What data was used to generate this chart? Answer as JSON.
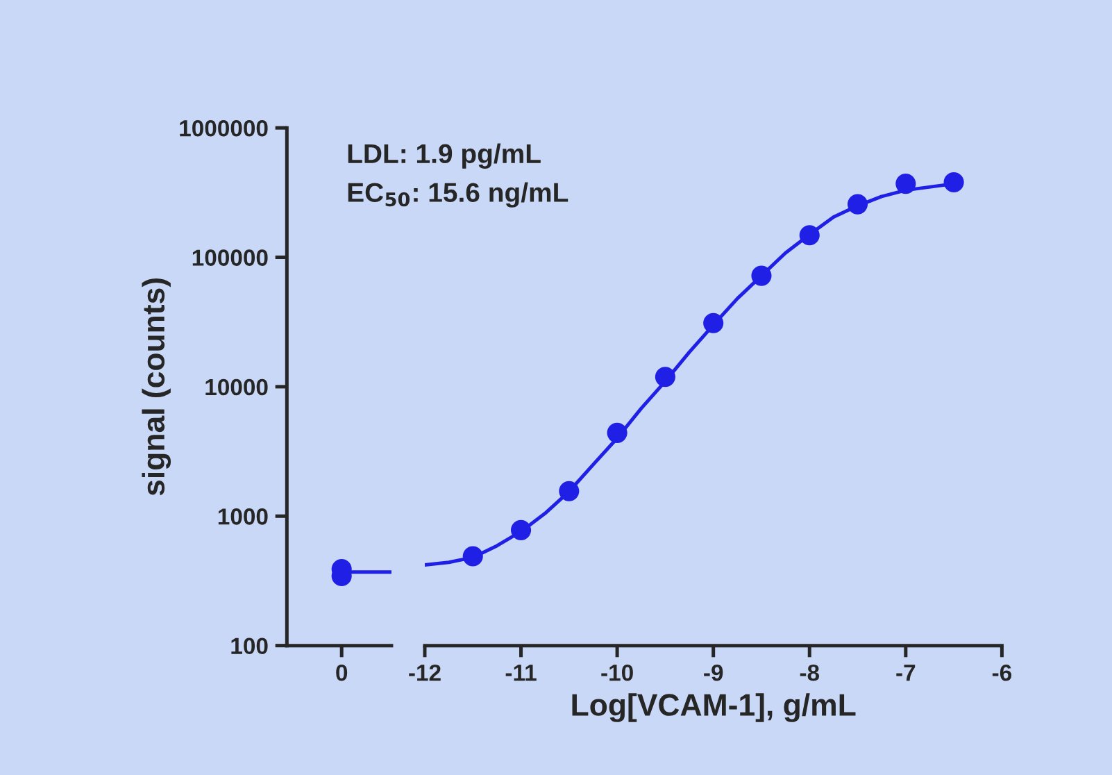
{
  "chart_data": [
    {
      "type": "scatter",
      "ylabel": "signal (counts)",
      "log": "y",
      "categories": [
        "0"
      ],
      "ylim": [
        100,
        1000000
      ],
      "yticks": [
        100,
        1000,
        10000,
        100000,
        1000000
      ],
      "grid": false,
      "legend": false,
      "annotations": [
        "LDL: 1.9 pg/mL",
        "EC$_{50}$: 15.6 ng/mL"
      ],
      "series": [
        {
          "color": "#1f1fe6",
          "marker": "circle",
          "x": [
            "0",
            "0"
          ],
          "values": [
            390,
            345
          ]
        }
      ],
      "ref_lines": [
        {
          "axis": "y",
          "value": 370,
          "color": "#1f1fe6",
          "line_style": "solid"
        }
      ]
    },
    {
      "type": "scatter",
      "xlabel": "Log[VCAM-1], g/mL",
      "log": "y",
      "xlim": [
        -12,
        -6
      ],
      "xticks": [
        -12,
        -11,
        -10,
        -9,
        -8,
        -7,
        -6
      ],
      "ylim": [
        100,
        1000000
      ],
      "yticks": [
        100,
        1000,
        10000,
        100000,
        1000000
      ],
      "tick_labels": "x",
      "grid": false,
      "legend": false,
      "series": [
        {
          "color": "#1f1fe6",
          "marker": "circle",
          "x": [
            -11.5,
            -11,
            -10.5,
            -10,
            -9.5,
            -9,
            -8.5,
            -8,
            -7.5,
            -7,
            -6.5
          ],
          "values": [
            490,
            780,
            1560,
            4400,
            11900,
            31000,
            72000,
            148000,
            257000,
            370000,
            380000
          ]
        },
        {
          "type": "line",
          "color": "#1f1fe6",
          "x": [
            -12,
            -11.75,
            -11.5,
            -11.25,
            -11,
            -10.75,
            -10.5,
            -10.25,
            -10,
            -9.75,
            -9.5,
            -9.25,
            -9,
            -8.75,
            -8.5,
            -8.25,
            -8,
            -7.75,
            -7.5,
            -7.25,
            -7,
            -6.5
          ],
          "values": [
            420,
            440,
            480,
            590,
            760,
            1050,
            1550,
            2500,
            4000,
            6800,
            11000,
            18500,
            30000,
            48000,
            72000,
            108000,
            150000,
            205000,
            250000,
            295000,
            330000,
            370000
          ]
        }
      ]
    }
  ]
}
